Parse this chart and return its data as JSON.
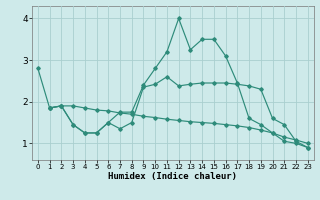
{
  "xlabel": "Humidex (Indice chaleur)",
  "bg_color": "#ceeaea",
  "grid_color": "#aacfcf",
  "line_color": "#2e8b7a",
  "xlim": [
    -0.5,
    23.5
  ],
  "ylim": [
    0.6,
    4.3
  ],
  "xticks": [
    0,
    1,
    2,
    3,
    4,
    5,
    6,
    7,
    8,
    9,
    10,
    11,
    12,
    13,
    14,
    15,
    16,
    17,
    18,
    19,
    20,
    21,
    22,
    23
  ],
  "yticks": [
    1,
    2,
    3,
    4
  ],
  "line1_x": [
    0,
    1,
    2,
    3,
    4,
    5,
    6,
    7,
    8,
    9,
    10,
    11,
    12,
    13,
    14,
    15,
    16,
    17,
    18,
    19,
    20,
    21,
    22,
    23
  ],
  "line1_y": [
    2.8,
    1.85,
    1.9,
    1.45,
    1.25,
    1.25,
    1.5,
    1.75,
    1.75,
    2.4,
    2.8,
    3.2,
    4.0,
    3.25,
    3.5,
    3.5,
    3.1,
    2.45,
    1.6,
    1.45,
    1.25,
    1.05,
    1.0,
    0.9
  ],
  "line2_x": [
    1,
    2,
    3,
    4,
    5,
    6,
    7,
    8,
    9,
    10,
    11,
    12,
    13,
    14,
    15,
    16,
    17,
    18,
    19,
    20,
    21,
    22,
    23
  ],
  "line2_y": [
    1.85,
    1.9,
    1.9,
    1.85,
    1.8,
    1.78,
    1.73,
    1.7,
    1.65,
    1.62,
    1.58,
    1.55,
    1.52,
    1.5,
    1.48,
    1.45,
    1.42,
    1.38,
    1.32,
    1.25,
    1.15,
    1.08,
    1.0
  ],
  "line3_x": [
    1,
    2,
    3,
    4,
    5,
    6,
    7,
    8,
    9,
    10,
    11,
    12,
    13,
    14,
    15,
    16,
    17,
    18,
    19,
    20,
    21,
    22,
    23
  ],
  "line3_y": [
    1.85,
    1.9,
    1.45,
    1.25,
    1.25,
    1.5,
    1.35,
    1.5,
    2.35,
    2.42,
    2.6,
    2.38,
    2.42,
    2.45,
    2.45,
    2.45,
    2.42,
    2.38,
    2.3,
    1.6,
    1.45,
    1.05,
    0.9
  ]
}
